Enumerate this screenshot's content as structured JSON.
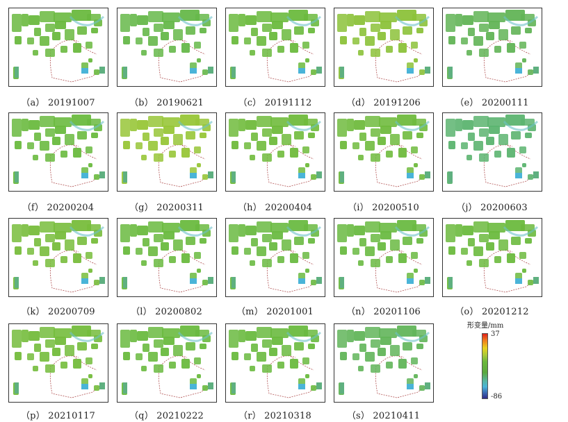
{
  "panels": [
    {
      "label": "（a） 20191007",
      "tint": "#6ab93f"
    },
    {
      "label": "（b） 20190621",
      "tint": "#66b84a"
    },
    {
      "label": "（c） 20191112",
      "tint": "#6bba3e"
    },
    {
      "label": "（d） 20191206",
      "tint": "#8cc23a"
    },
    {
      "label": "（e） 20200111",
      "tint": "#62b456"
    },
    {
      "label": "（f） 20200204",
      "tint": "#6aba3f"
    },
    {
      "label": "（g） 20200311",
      "tint": "#98c638"
    },
    {
      "label": "（h） 20200404",
      "tint": "#70bb3c"
    },
    {
      "label": "（i） 20200510",
      "tint": "#70bb3e"
    },
    {
      "label": "（j） 20200603",
      "tint": "#5cb470"
    },
    {
      "label": "（k） 20200709",
      "tint": "#78bd3c"
    },
    {
      "label": "（l） 20200802",
      "tint": "#6aba3f"
    },
    {
      "label": "（m） 20201001",
      "tint": "#6aba42"
    },
    {
      "label": "（n） 20201106",
      "tint": "#6aba42"
    },
    {
      "label": "（o） 20201212",
      "tint": "#6cba3e"
    },
    {
      "label": "（p） 20210117",
      "tint": "#74bc3c"
    },
    {
      "label": "（q） 20210222",
      "tint": "#6aba3f"
    },
    {
      "label": "（r） 20210318",
      "tint": "#6aba3f"
    },
    {
      "label": "（s） 20210411",
      "tint": "#62b55a"
    }
  ],
  "legend": {
    "title": "形变量/mm",
    "max": "37",
    "min": "-86"
  }
}
